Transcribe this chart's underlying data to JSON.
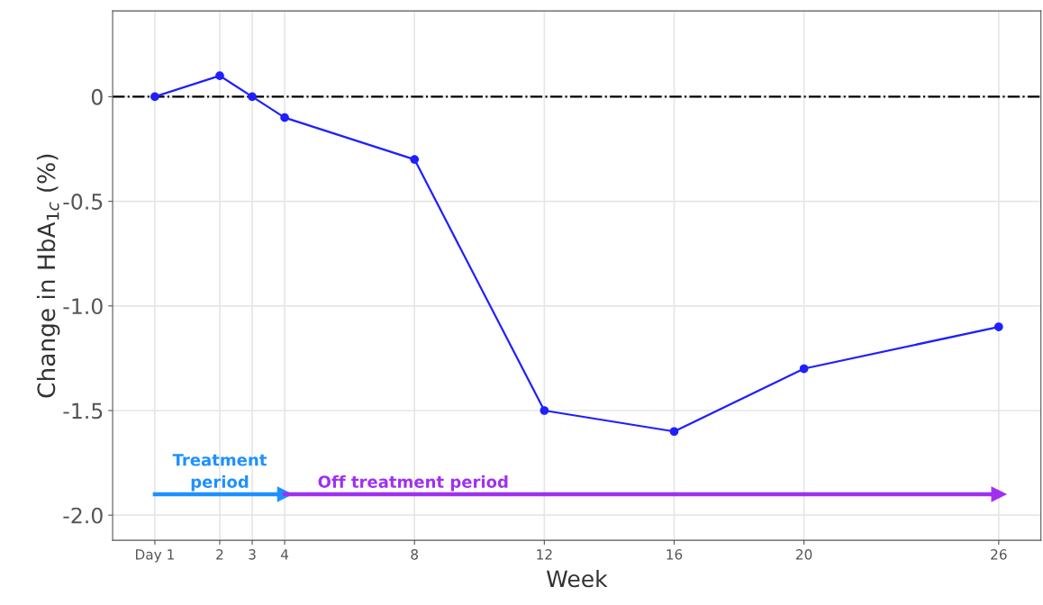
{
  "chart_data": {
    "type": "line",
    "xlabel": "Week",
    "ylabel": "Change in HbA$_{1c}$ (%)",
    "x": [
      0,
      2,
      3,
      4,
      8,
      12,
      16,
      20,
      26
    ],
    "series": [
      {
        "color": "#1f1fff",
        "values": [
          0,
          0.1,
          0,
          -0.1,
          -0.3,
          -1.5,
          -1.6,
          -1.3,
          -1.1
        ]
      },
      {
        "name": "Treatment period",
        "color": "#1e90ff",
        "x": [
          0,
          4
        ],
        "values": [
          -1.9,
          -1.9
        ],
        "marker": "triangle"
      },
      {
        "name": "Off treatment period",
        "color": "#a030f0",
        "x": [
          4,
          26
        ],
        "values": [
          -1.9,
          -1.9
        ],
        "marker": "triangle"
      }
    ],
    "marker": "circle",
    "line_style": "solid",
    "grid": true,
    "xlim": [
      -1.3,
      27.3
    ],
    "ylim": [
      -2.12,
      0.41
    ],
    "xticks": [
      {
        "value": 0,
        "label": "Day 1"
      },
      2,
      3,
      4,
      8,
      12,
      16,
      20,
      26
    ],
    "yticks": [
      0,
      -0.5,
      {
        "value": -1.0,
        "label": "-1.0"
      },
      -1.5,
      {
        "value": -2.0,
        "label": "-2.0"
      }
    ],
    "ref_lines": [
      {
        "axis": "y",
        "value": 0,
        "color": "#000000",
        "line_style": "dashdot"
      }
    ]
  }
}
